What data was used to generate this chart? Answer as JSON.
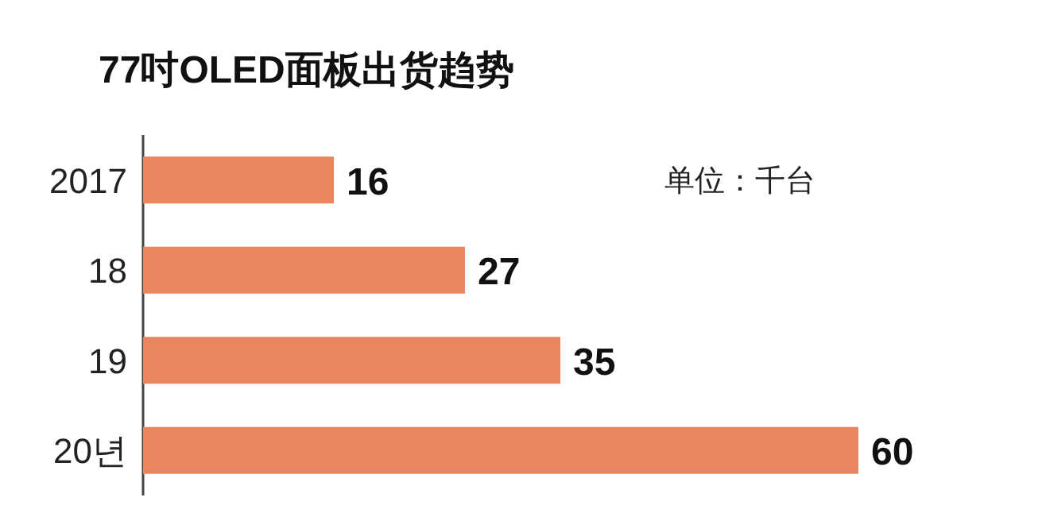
{
  "chart_data": {
    "type": "bar",
    "orientation": "horizontal",
    "title": "77吋OLED面板出货趋势",
    "categories": [
      "2017",
      "18",
      "19",
      "20년"
    ],
    "values": [
      16,
      27,
      35,
      60
    ],
    "color": "#e8875f",
    "data_labels": true,
    "annotations": [
      "单位：千台"
    ]
  }
}
